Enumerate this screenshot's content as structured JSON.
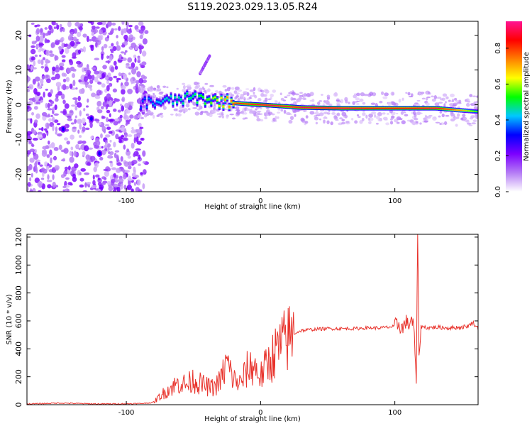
{
  "title": "S119.2023.029.13.05.R24",
  "colors": {
    "snr_line": "#e8322b",
    "axis": "#000000"
  },
  "chart_data": [
    {
      "type": "heatmap",
      "xlabel": "Height of straight line (km)",
      "ylabel": "Frequency (Hz)",
      "xlim": [
        -174,
        162
      ],
      "ylim": [
        -25,
        24
      ],
      "xticks": [
        -100,
        0,
        100
      ],
      "yticks": [
        -20,
        -10,
        0,
        10,
        20
      ],
      "grid": false,
      "colorbar": {
        "label": "Normalized spectral amplitude",
        "range": [
          0,
          0.95
        ],
        "ticks": [
          "0.0",
          "0.2",
          "0.4",
          "0.6",
          "0.8"
        ],
        "colormap": [
          "#ffffff",
          "#b57cf5",
          "#7c00ff",
          "#0000ff",
          "#00c8ff",
          "#00ff00",
          "#ffff00",
          "#ff8000",
          "#ff0000",
          "#ff1493"
        ]
      },
      "ridge": {
        "x": [
          -90,
          -70,
          -50,
          -40,
          -30,
          -20,
          -10,
          0,
          30,
          60,
          90,
          100,
          110,
          130,
          145,
          162
        ],
        "frequency": [
          0.5,
          1.0,
          2.0,
          1.5,
          1.0,
          0.5,
          0.2,
          0.0,
          -0.8,
          -1.0,
          -1.0,
          -1.0,
          -1.0,
          -1.0,
          -1.5,
          -2.0
        ],
        "amplitude": [
          0.35,
          0.45,
          0.5,
          0.55,
          0.65,
          0.8,
          0.85,
          0.9,
          0.9,
          0.9,
          0.85,
          0.85,
          0.85,
          0.9,
          0.75,
          0.55
        ]
      },
      "noise_region_x": [
        -174,
        -85
      ],
      "feature": {
        "x": [
          -45,
          -38
        ],
        "frequency": [
          9,
          14
        ]
      }
    },
    {
      "type": "line",
      "xlabel": "Height of straight line (km)",
      "ylabel": "SNR (10 * v/v)",
      "xlim": [
        -174,
        162
      ],
      "ylim": [
        0,
        1220
      ],
      "xticks": [
        -100,
        0,
        100
      ],
      "yticks": [
        0,
        200,
        400,
        600,
        800,
        1000,
        1200
      ],
      "grid": false,
      "series": [
        {
          "x": [
            -174,
            -150,
            -120,
            -90,
            -80,
            -75,
            -70,
            -65,
            -60,
            -55,
            -50,
            -45,
            -40,
            -35,
            -30,
            -25,
            -22,
            -20,
            -15,
            -10,
            -5,
            0,
            5,
            10,
            15,
            20,
            25,
            30,
            40,
            50,
            60,
            70,
            80,
            90,
            95,
            100,
            103,
            106,
            108,
            110,
            112,
            114,
            116,
            117,
            118,
            120,
            125,
            130,
            140,
            150,
            155,
            158,
            162
          ],
          "values": [
            5,
            12,
            5,
            8,
            15,
            60,
            100,
            130,
            160,
            140,
            180,
            150,
            130,
            120,
            170,
            300,
            220,
            180,
            150,
            250,
            280,
            200,
            290,
            360,
            420,
            470,
            510,
            530,
            540,
            545,
            545,
            545,
            550,
            550,
            555,
            560,
            580,
            540,
            600,
            560,
            620,
            560,
            180,
            1220,
            400,
            560,
            550,
            555,
            550,
            555,
            565,
            590,
            545
          ]
        }
      ]
    }
  ]
}
